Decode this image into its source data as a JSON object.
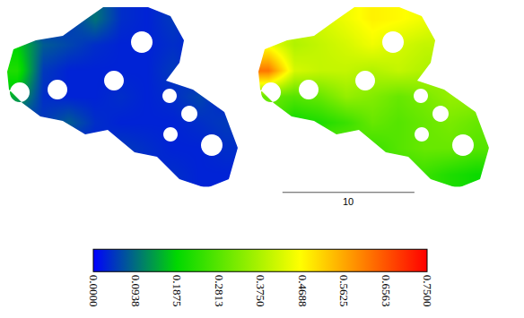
{
  "chart_data": {
    "type": "heatmap",
    "tick_labels": false,
    "xlim": [
      0,
      39.7
    ],
    "ylim": [
      -1.6,
      14.6
    ],
    "panels": [
      {
        "x": [
          1.32,
          3.29,
          5.25,
          7.22,
          9.18,
          11.15,
          13.11,
          15.08,
          17.05
        ],
        "y": [
          1.41,
          3.38,
          5.35,
          7.32,
          9.29,
          11.26,
          13.24
        ],
        "z": [
          [
            0.03,
            0.03,
            0.03,
            0.03,
            0.03,
            0.03,
            0.04,
            0.03,
            0.03
          ],
          [
            0.03,
            0.03,
            0.03,
            0.03,
            0.05,
            0.04,
            0.03,
            0.03,
            0.04
          ],
          [
            0.05,
            0.05,
            0.08,
            0.04,
            0.03,
            0.03,
            0.03,
            0.04,
            0.05
          ],
          [
            0.15,
            0.04,
            0.03,
            0.03,
            0.04,
            0.03,
            0.04,
            0.06,
            0.03
          ],
          [
            0.22,
            0.05,
            0.03,
            0.03,
            0.03,
            0.03,
            0.05,
            0.03,
            0.03
          ],
          [
            0.18,
            0.08,
            0.06,
            0.04,
            0.03,
            0.03,
            0.04,
            0.03,
            0.03
          ],
          [
            0.03,
            0.03,
            0.05,
            0.1,
            0.04,
            0.03,
            0.05,
            0.03,
            0.03
          ]
        ]
      },
      {
        "x": [
          20.35,
          22.32,
          24.28,
          26.25,
          28.21,
          30.18,
          32.14,
          34.11,
          36.08
        ],
        "y": [
          1.41,
          3.38,
          5.35,
          7.32,
          9.29,
          11.26,
          13.24
        ],
        "z": [
          [
            0.3,
            0.3,
            0.3,
            0.3,
            0.3,
            0.25,
            0.25,
            0.22,
            0.2
          ],
          [
            0.3,
            0.3,
            0.3,
            0.3,
            0.25,
            0.28,
            0.3,
            0.3,
            0.28
          ],
          [
            0.3,
            0.2,
            0.22,
            0.25,
            0.3,
            0.28,
            0.3,
            0.32,
            0.3
          ],
          [
            0.3,
            0.28,
            0.3,
            0.35,
            0.33,
            0.3,
            0.32,
            0.35,
            0.35
          ],
          [
            0.62,
            0.42,
            0.4,
            0.4,
            0.38,
            0.4,
            0.38,
            0.35,
            0.35
          ],
          [
            0.45,
            0.38,
            0.4,
            0.42,
            0.45,
            0.42,
            0.4,
            0.4,
            0.4
          ],
          [
            0.4,
            0.4,
            0.42,
            0.45,
            0.48,
            0.47,
            0.45,
            0.4,
            0.4
          ]
        ]
      }
    ],
    "color_range": [
      0,
      0.75
    ],
    "color_ticks": [
      {
        "value": 0,
        "label": "0.0000"
      },
      {
        "value": 0.09375,
        "label": "0.0938"
      },
      {
        "value": 0.1875,
        "label": "0.1875"
      },
      {
        "value": 0.28125,
        "label": "0.2813"
      },
      {
        "value": 0.375,
        "label": "0.3750"
      },
      {
        "value": 0.46875,
        "label": "0.4688"
      },
      {
        "value": 0.5625,
        "label": "0.5625"
      },
      {
        "value": 0.65625,
        "label": "0.6563"
      },
      {
        "value": 0.75,
        "label": "0.7500"
      }
    ],
    "scale_bar": 10
  }
}
